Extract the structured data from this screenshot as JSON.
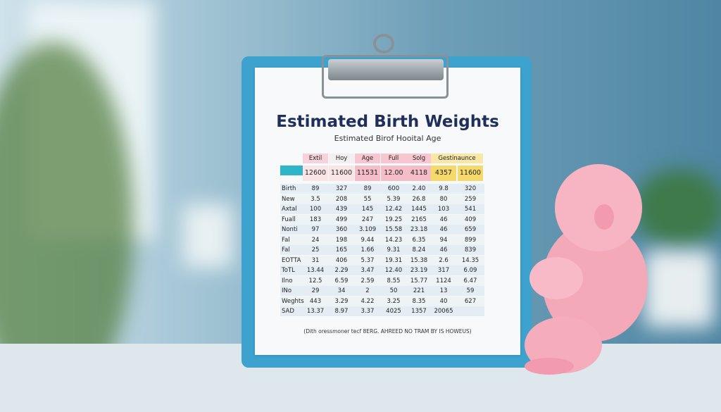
{
  "sheet": {
    "title": "Estimated Birth Weights",
    "subtitle": "Estimated Birof Hooital Age",
    "table": {
      "header": [
        "Extil",
        "Hoy",
        "Age",
        "Full",
        "Solg",
        "Gestinaunce"
      ],
      "highlight_row": [
        "12600",
        "11600",
        "11531",
        "12.00",
        "4118",
        "4357",
        "11600"
      ],
      "rows": [
        [
          "Birth",
          "89",
          "327",
          "89",
          "600",
          "2.40",
          "9.8",
          "320"
        ],
        [
          "New",
          "3.5",
          "208",
          "55",
          "5.39",
          "26.8",
          "80",
          "259"
        ],
        [
          "Axtal",
          "100",
          "439",
          "145",
          "12.42",
          "1445",
          "103",
          "541"
        ],
        [
          "Fuall",
          "183",
          "499",
          "247",
          "19.25",
          "2165",
          "46",
          "409"
        ],
        [
          "Nonti",
          "97",
          "360",
          "3.109",
          "15.58",
          "23.18",
          "46",
          "659"
        ],
        [
          "Fal",
          "24",
          "198",
          "9.44",
          "14.23",
          "6.35",
          "94",
          "899"
        ],
        [
          "Fal",
          "25",
          "165",
          "1.66",
          "9.31",
          "8.24",
          "46",
          "839"
        ],
        [
          "EOTTA",
          "31",
          "406",
          "5.37",
          "19.31",
          "15.38",
          "2.6",
          "14.35"
        ],
        [
          "ToTL",
          "13.44",
          "2.29",
          "3.47",
          "12.40",
          "23.19",
          "317",
          "6.09"
        ],
        [
          "Ilno",
          "12.5",
          "6.59",
          "2.59",
          "8.55",
          "15.77",
          "1124",
          "6.47"
        ],
        [
          "INo",
          "29",
          "34",
          "2",
          "50",
          "221",
          "13",
          "59"
        ],
        [
          "Weghts",
          "443",
          "3.29",
          "4.22",
          "3.25",
          "8.35",
          "40",
          "627"
        ],
        [
          "SAD",
          "13.37",
          "8.97",
          "3.37",
          "4025",
          "1357",
          "20065"
        ]
      ]
    },
    "footnote": "(Dith oressmoner tecf 8ERG. AHREED NO TRAM BY IS HOWEUS)"
  }
}
